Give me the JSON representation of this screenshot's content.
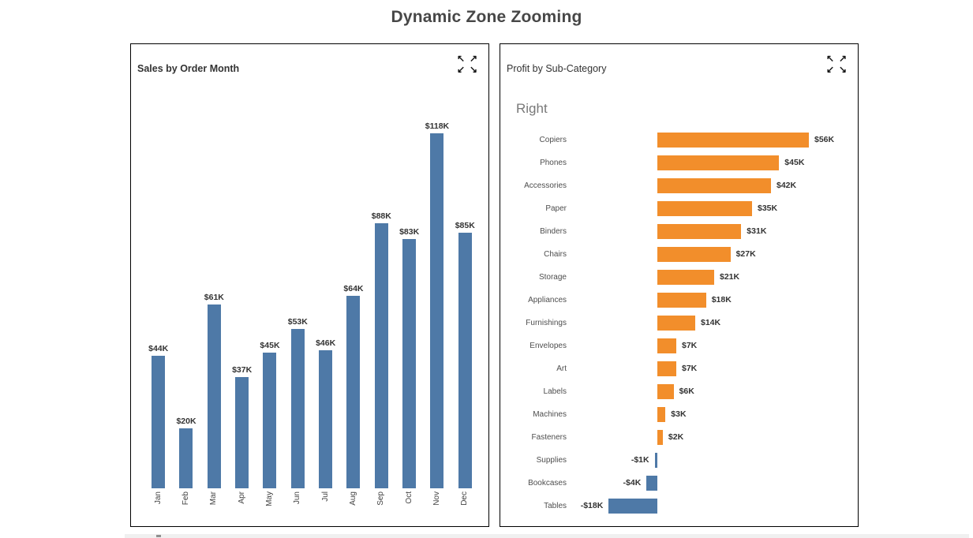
{
  "page": {
    "title": "Dynamic Zone Zooming"
  },
  "icons": {
    "expand": [
      "↖",
      "↗",
      "↙",
      "↘"
    ]
  },
  "colors": {
    "sales_bar": "#4E79A7",
    "positive_bar": "#F28E2B",
    "negative_bar": "#4E79A7",
    "title_text": "#474747"
  },
  "panels": {
    "sales": {
      "title": "Sales by Order Month"
    },
    "profit": {
      "title": "Profit by Sub-Category",
      "zone_label": "Right"
    }
  },
  "chart_data": [
    {
      "type": "bar",
      "orientation": "vertical",
      "title": "Sales by Order Month",
      "categories": [
        "Jan",
        "Feb",
        "Mar",
        "Apr",
        "May",
        "Jun",
        "Jul",
        "Aug",
        "Sep",
        "Oct",
        "Nov",
        "Dec"
      ],
      "values": [
        44,
        20,
        61,
        37,
        45,
        53,
        46,
        64,
        88,
        83,
        118,
        85
      ],
      "labels": [
        "$44K",
        "$20K",
        "$61K",
        "$37K",
        "$45K",
        "$53K",
        "$46K",
        "$64K",
        "$88K",
        "$83K",
        "$118K",
        "$85K"
      ],
      "unit": "K USD",
      "ylim": [
        0,
        118
      ],
      "grid": false,
      "legend": false
    },
    {
      "type": "bar",
      "orientation": "horizontal",
      "title": "Profit by Sub-Category",
      "zone_label": "Right",
      "categories": [
        "Copiers",
        "Phones",
        "Accessories",
        "Paper",
        "Binders",
        "Chairs",
        "Storage",
        "Appliances",
        "Furnishings",
        "Envelopes",
        "Art",
        "Labels",
        "Machines",
        "Fasteners",
        "Supplies",
        "Bookcases",
        "Tables"
      ],
      "values": [
        56,
        45,
        42,
        35,
        31,
        27,
        21,
        18,
        14,
        7,
        7,
        6,
        3,
        2,
        -1,
        -4,
        -18
      ],
      "labels": [
        "$56K",
        "$45K",
        "$42K",
        "$35K",
        "$31K",
        "$27K",
        "$21K",
        "$18K",
        "$14K",
        "$7K",
        "$7K",
        "$6K",
        "$3K",
        "$2K",
        "-$1K",
        "-$4K",
        "-$18K"
      ],
      "unit": "K USD",
      "xlim": [
        -18,
        56
      ],
      "grid": false,
      "legend": false
    }
  ]
}
